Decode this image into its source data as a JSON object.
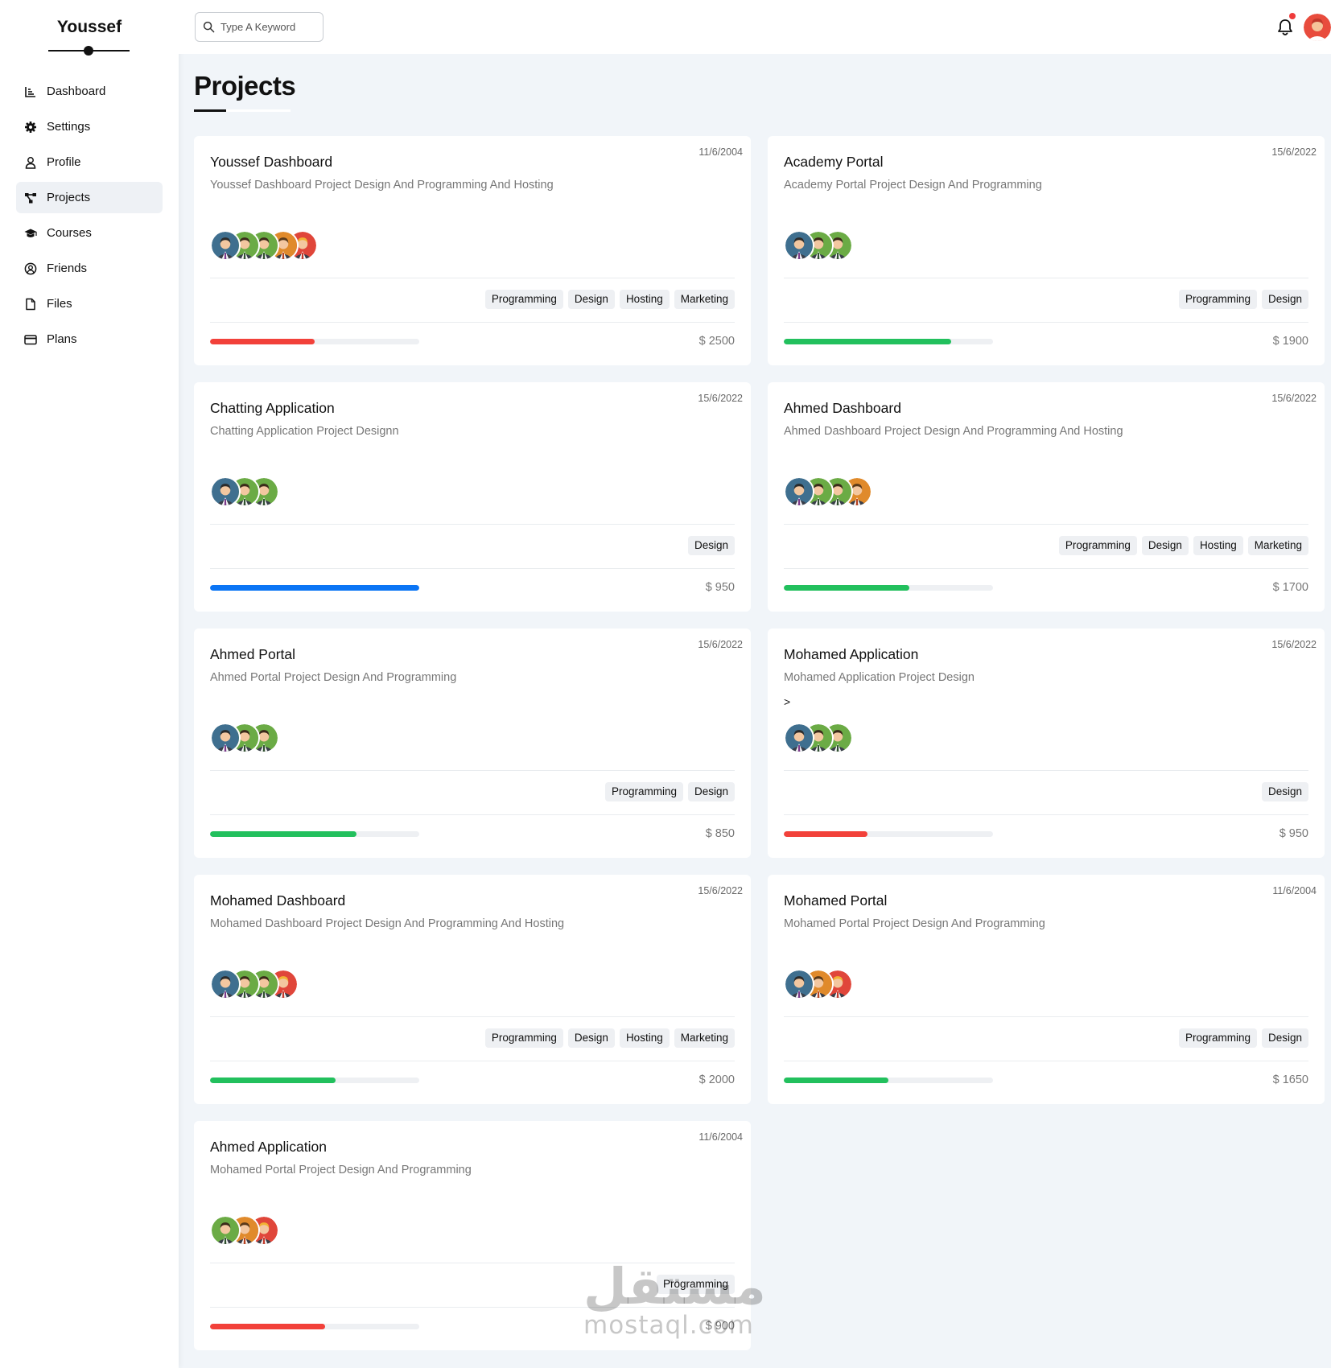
{
  "brand": "Youssef",
  "sidebar": {
    "items": [
      {
        "label": "Dashboard",
        "icon": "chart-icon",
        "active": false
      },
      {
        "label": "Settings",
        "icon": "gear-icon",
        "active": false
      },
      {
        "label": "Profile",
        "icon": "user-icon",
        "active": false
      },
      {
        "label": "Projects",
        "icon": "diagram-icon",
        "active": true
      },
      {
        "label": "Courses",
        "icon": "graduation-cap-icon",
        "active": false
      },
      {
        "label": "Friends",
        "icon": "user-circle-icon",
        "active": false
      },
      {
        "label": "Files",
        "icon": "file-icon",
        "active": false
      },
      {
        "label": "Plans",
        "icon": "credit-card-icon",
        "active": false
      }
    ]
  },
  "header": {
    "search_placeholder": "Type A Keyword",
    "has_notification": true
  },
  "page_title": "Projects",
  "colors": {
    "red": "#f2413a",
    "green": "#22c05d",
    "blue": "#0b75f5"
  },
  "projects": [
    {
      "title": "Youssef Dashboard",
      "date": "11/6/2004",
      "description": "Youssef Dashboard Project Design And Programming And Hosting",
      "note": "",
      "avatars": [
        "blue",
        "green",
        "green",
        "orange",
        "red"
      ],
      "tags": [
        "Programming",
        "Design",
        "Hosting",
        "Marketing"
      ],
      "progress": 0.5,
      "progress_color": "red",
      "price": "$ 2500"
    },
    {
      "title": "Academy Portal",
      "date": "15/6/2022",
      "description": "Academy Portal Project Design And Programming",
      "note": "",
      "avatars": [
        "blue",
        "green",
        "green"
      ],
      "tags": [
        "Programming",
        "Design"
      ],
      "progress": 0.8,
      "progress_color": "green",
      "price": "$ 1900"
    },
    {
      "title": "Chatting Application",
      "date": "15/6/2022",
      "description": "Chatting Application Project Designn",
      "note": "",
      "avatars": [
        "blue",
        "green",
        "green"
      ],
      "tags": [
        "Design"
      ],
      "progress": 1.0,
      "progress_color": "blue",
      "price": "$ 950"
    },
    {
      "title": "Ahmed Dashboard",
      "date": "15/6/2022",
      "description": "Ahmed Dashboard Project Design And Programming And Hosting",
      "note": "",
      "avatars": [
        "blue",
        "green",
        "green",
        "orange"
      ],
      "tags": [
        "Programming",
        "Design",
        "Hosting",
        "Marketing"
      ],
      "progress": 0.6,
      "progress_color": "green",
      "price": "$ 1700"
    },
    {
      "title": "Ahmed Portal",
      "date": "15/6/2022",
      "description": "Ahmed Portal Project Design And Programming",
      "note": "",
      "avatars": [
        "blue",
        "green",
        "green"
      ],
      "tags": [
        "Programming",
        "Design"
      ],
      "progress": 0.7,
      "progress_color": "green",
      "price": "$ 850"
    },
    {
      "title": "Mohamed Application",
      "date": "15/6/2022",
      "description": "Mohamed Application Project Design",
      "note": ">",
      "avatars": [
        "blue",
        "green",
        "green"
      ],
      "tags": [
        "Design"
      ],
      "progress": 0.4,
      "progress_color": "red",
      "price": "$ 950"
    },
    {
      "title": "Mohamed Dashboard",
      "date": "15/6/2022",
      "description": "Mohamed Dashboard Project Design And Programming And Hosting",
      "note": "",
      "avatars": [
        "blue",
        "green",
        "green",
        "red"
      ],
      "tags": [
        "Programming",
        "Design",
        "Hosting",
        "Marketing"
      ],
      "progress": 0.6,
      "progress_color": "green",
      "price": "$ 2000"
    },
    {
      "title": "Mohamed Portal",
      "date": "11/6/2004",
      "description": "Mohamed Portal Project Design And Programming",
      "note": "",
      "avatars": [
        "blue",
        "orange",
        "red"
      ],
      "tags": [
        "Programming",
        "Design"
      ],
      "progress": 0.5,
      "progress_color": "green",
      "price": "$ 1650"
    },
    {
      "title": "Ahmed Application",
      "date": "11/6/2004",
      "description": "Mohamed Portal Project Design And Programming",
      "note": "",
      "avatars": [
        "green",
        "orange",
        "red"
      ],
      "tags": [
        "Programming"
      ],
      "progress": 0.55,
      "progress_color": "red",
      "price": "$ 900"
    }
  ],
  "watermark": {
    "arabic": "مستقل",
    "latin": "mostaql.com"
  }
}
